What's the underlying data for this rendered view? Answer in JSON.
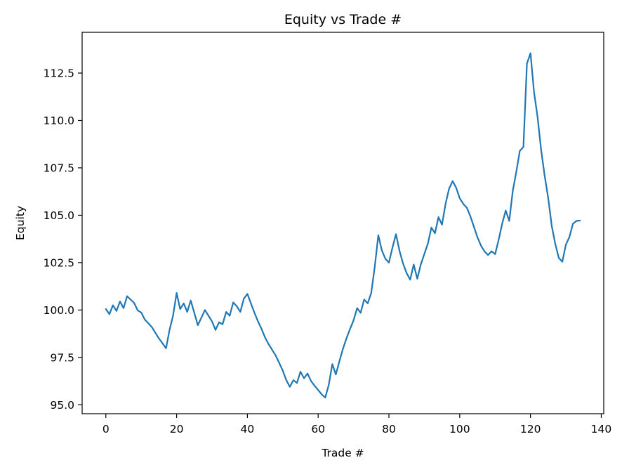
{
  "chart_data": {
    "type": "line",
    "title": "Equity vs Trade #",
    "xlabel": "Trade #",
    "ylabel": "Equity",
    "series_name": "Equity",
    "x_start": 0,
    "x_step": 1,
    "values": [
      100.05,
      99.78,
      100.25,
      99.95,
      100.45,
      100.1,
      100.73,
      100.55,
      100.37,
      99.98,
      99.87,
      99.5,
      99.3,
      99.1,
      98.8,
      98.5,
      98.25,
      97.98,
      98.95,
      99.7,
      100.9,
      100.05,
      100.35,
      99.9,
      100.5,
      99.85,
      99.2,
      99.6,
      100.0,
      99.7,
      99.4,
      98.95,
      99.35,
      99.25,
      99.9,
      99.7,
      100.4,
      100.2,
      99.9,
      100.6,
      100.85,
      100.35,
      99.85,
      99.4,
      99.0,
      98.55,
      98.2,
      97.9,
      97.6,
      97.2,
      96.8,
      96.3,
      95.95,
      96.3,
      96.15,
      96.75,
      96.4,
      96.65,
      96.25,
      96.0,
      95.78,
      95.55,
      95.38,
      96.05,
      97.15,
      96.6,
      97.3,
      97.95,
      98.5,
      99.0,
      99.45,
      100.1,
      99.85,
      100.55,
      100.35,
      100.9,
      102.3,
      103.95,
      103.15,
      102.7,
      102.5,
      103.3,
      104.0,
      103.1,
      102.45,
      101.95,
      101.6,
      102.4,
      101.65,
      102.4,
      102.95,
      103.5,
      104.35,
      104.05,
      104.9,
      104.5,
      105.6,
      106.4,
      106.8,
      106.45,
      105.9,
      105.6,
      105.4,
      104.95,
      104.4,
      103.85,
      103.4,
      103.1,
      102.9,
      103.1,
      102.95,
      103.7,
      104.55,
      105.25,
      104.7,
      106.3,
      107.3,
      108.4,
      108.6,
      113.0,
      113.55,
      111.5,
      110.2,
      108.45,
      107.1,
      105.9,
      104.45,
      103.5,
      102.75,
      102.55,
      103.45,
      103.85,
      104.55,
      104.7,
      104.72
    ],
    "xlim": [
      -6.7,
      140.7
    ],
    "ylim": [
      94.53,
      114.65
    ],
    "xticks": [
      {
        "v": 0,
        "label": "0"
      },
      {
        "v": 20,
        "label": "20"
      },
      {
        "v": 40,
        "label": "40"
      },
      {
        "v": 60,
        "label": "60"
      },
      {
        "v": 80,
        "label": "80"
      },
      {
        "v": 100,
        "label": "100"
      },
      {
        "v": 120,
        "label": "120"
      },
      {
        "v": 140,
        "label": "140"
      }
    ],
    "yticks": [
      {
        "v": 95.0,
        "label": "95.0"
      },
      {
        "v": 97.5,
        "label": "97.5"
      },
      {
        "v": 100.0,
        "label": "100.0"
      },
      {
        "v": 102.5,
        "label": "102.5"
      },
      {
        "v": 105.0,
        "label": "105.0"
      },
      {
        "v": 107.5,
        "label": "107.5"
      },
      {
        "v": 110.0,
        "label": "110.0"
      },
      {
        "v": 112.5,
        "label": "112.5"
      }
    ],
    "grid": false,
    "legend_position": "none",
    "colors": {
      "line": "#1f77b4",
      "text": "#000000",
      "spine": "#000000",
      "background": "#ffffff"
    }
  }
}
